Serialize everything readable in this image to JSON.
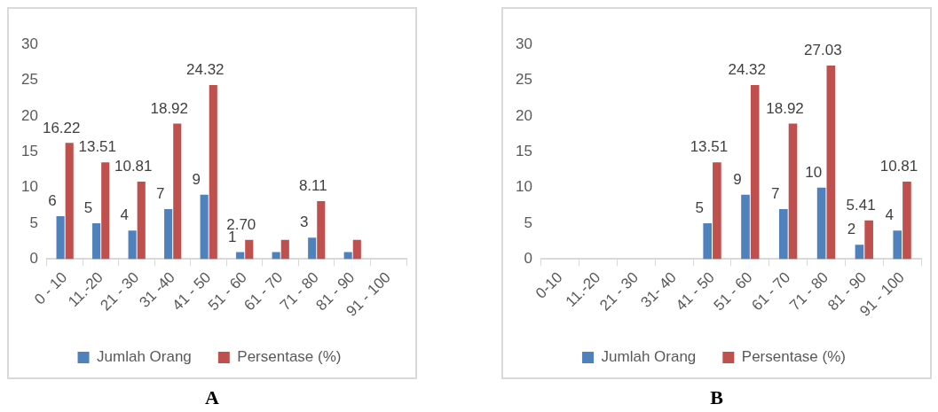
{
  "chart_data": [
    {
      "type": "bar",
      "categories": [
        "0 - 10",
        "11.-20",
        "21 - 30",
        "31 -40",
        "41 - 50",
        "51 - 60",
        "61 - 70",
        "71 - 80",
        "81 - 90",
        "91 - 100"
      ],
      "series": [
        {
          "name": "Jumlah Orang",
          "color": "#4f81bd",
          "values": [
            6,
            5,
            4,
            7,
            9,
            1,
            1,
            3,
            1,
            0
          ],
          "value_labels": [
            "6",
            "5",
            "4",
            "7",
            "9",
            "1",
            null,
            "3",
            null,
            null
          ]
        },
        {
          "name": "Persentase (%)",
          "color": "#c0504d",
          "values": [
            16.22,
            13.51,
            10.81,
            18.92,
            24.32,
            2.7,
            2.7,
            8.11,
            2.7,
            0
          ],
          "value_labels": [
            "16.22",
            "13.51",
            "10.81",
            "18.92",
            "24.32",
            "2.70",
            null,
            "8.11",
            null,
            null
          ]
        }
      ],
      "ylim": [
        0,
        30
      ],
      "yticks": [
        0,
        5,
        10,
        15,
        20,
        25,
        30
      ],
      "grid": false,
      "legend": "bottom",
      "annotations": [
        "A"
      ]
    },
    {
      "type": "bar",
      "categories": [
        "0-10",
        "11.-20",
        "21 - 30",
        "31- 40",
        "41 - 50",
        "51 - 60",
        "61 - 70",
        "71 - 80",
        "81 - 90",
        "91 - 100"
      ],
      "series": [
        {
          "name": "Jumlah Orang",
          "color": "#4f81bd",
          "values": [
            0,
            0,
            0,
            0,
            5,
            9,
            7,
            10,
            2,
            4
          ],
          "value_labels": [
            null,
            null,
            null,
            null,
            "5",
            "9",
            "7",
            "10",
            "2",
            "4"
          ]
        },
        {
          "name": "Persentase (%)",
          "color": "#c0504d",
          "values": [
            0,
            0,
            0,
            0,
            13.51,
            24.32,
            18.92,
            27.03,
            5.41,
            10.81
          ],
          "value_labels": [
            null,
            null,
            null,
            null,
            "13.51",
            "24.32",
            "18.92",
            "27.03",
            "5.41",
            "10.81"
          ]
        }
      ],
      "ylim": [
        0,
        30
      ],
      "yticks": [
        0,
        5,
        10,
        15,
        20,
        25,
        30
      ],
      "grid": false,
      "legend": "bottom",
      "annotations": [
        "B"
      ]
    }
  ]
}
